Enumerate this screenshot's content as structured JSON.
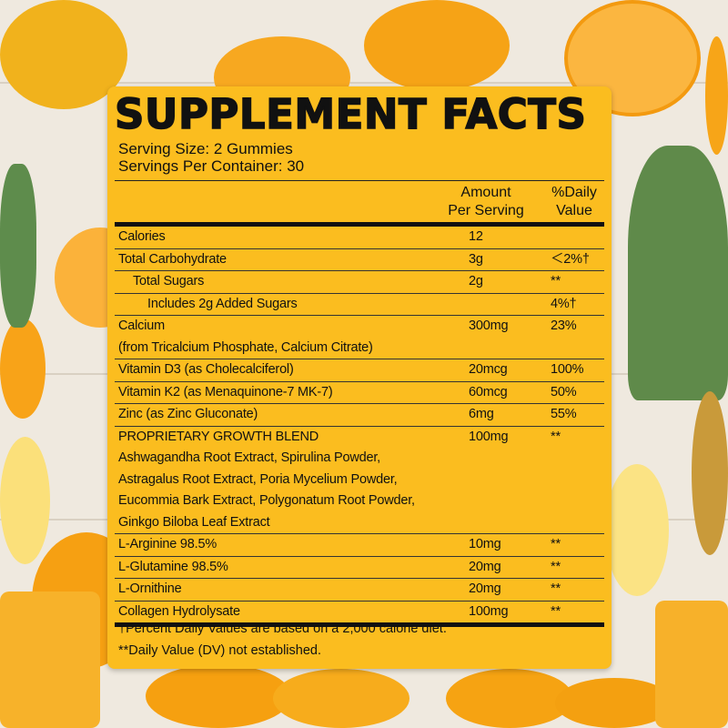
{
  "title": "SUPPLEMENT FACTS",
  "serving_size": "Serving Size: 2 Gummies",
  "servings_per_container": "Servings Per Container: 30",
  "headers": {
    "amount_1": "Amount",
    "amount_2": "Per Serving",
    "dv_1": "%Daily",
    "dv_2": "Value"
  },
  "rows": [
    {
      "name": "Calories",
      "amount": "12",
      "dv": ""
    },
    {
      "name": "Total Carbohydrate",
      "amount": "3g",
      "dv": "＜2%†"
    },
    {
      "name": "Total Sugars",
      "amount": "2g",
      "dv": "**"
    },
    {
      "name": "Includes 2g Added Sugars",
      "amount": "",
      "dv": "4%†"
    },
    {
      "name": "Calcium",
      "sub": "(from Tricalcium Phosphate, Calcium Citrate)",
      "amount": "300mg",
      "dv": "23%"
    },
    {
      "name": "Vitamin D3 (as Cholecalciferol)",
      "amount": "20mcg",
      "dv": "100%"
    },
    {
      "name": "Vitamin K2 (as Menaquinone-7 MK-7)",
      "amount": "60mcg",
      "dv": "50%"
    },
    {
      "name": "Zinc (as Zinc Gluconate)",
      "amount": "6mg",
      "dv": "55%"
    },
    {
      "name": "PROPRIETARY GROWTH BLEND",
      "sub": [
        "Ashwagandha Root Extract, Spirulina Powder,",
        "Astragalus Root Extract, Poria Mycelium Powder,",
        "Eucommia Bark Extract, Polygonatum Root Powder,",
        "Ginkgo Biloba Leaf Extract"
      ],
      "amount": "100mg",
      "dv": "**"
    },
    {
      "name": "L-Arginine 98.5%",
      "amount": "10mg",
      "dv": "**"
    },
    {
      "name": "L-Glutamine 98.5%",
      "amount": "20mg",
      "dv": "**"
    },
    {
      "name": "L-Ornithine",
      "amount": "20mg",
      "dv": "**"
    },
    {
      "name": "Collagen Hydrolysate",
      "amount": "100mg",
      "dv": "**"
    }
  ],
  "footnotes": [
    "†Percent Daily Values are based on a 2,000 calorie diet.",
    "**Daily Value (DV) not established."
  ],
  "colors": {
    "panel": "#fbbd1f",
    "text": "#111111",
    "orange": "#f5a11a"
  }
}
